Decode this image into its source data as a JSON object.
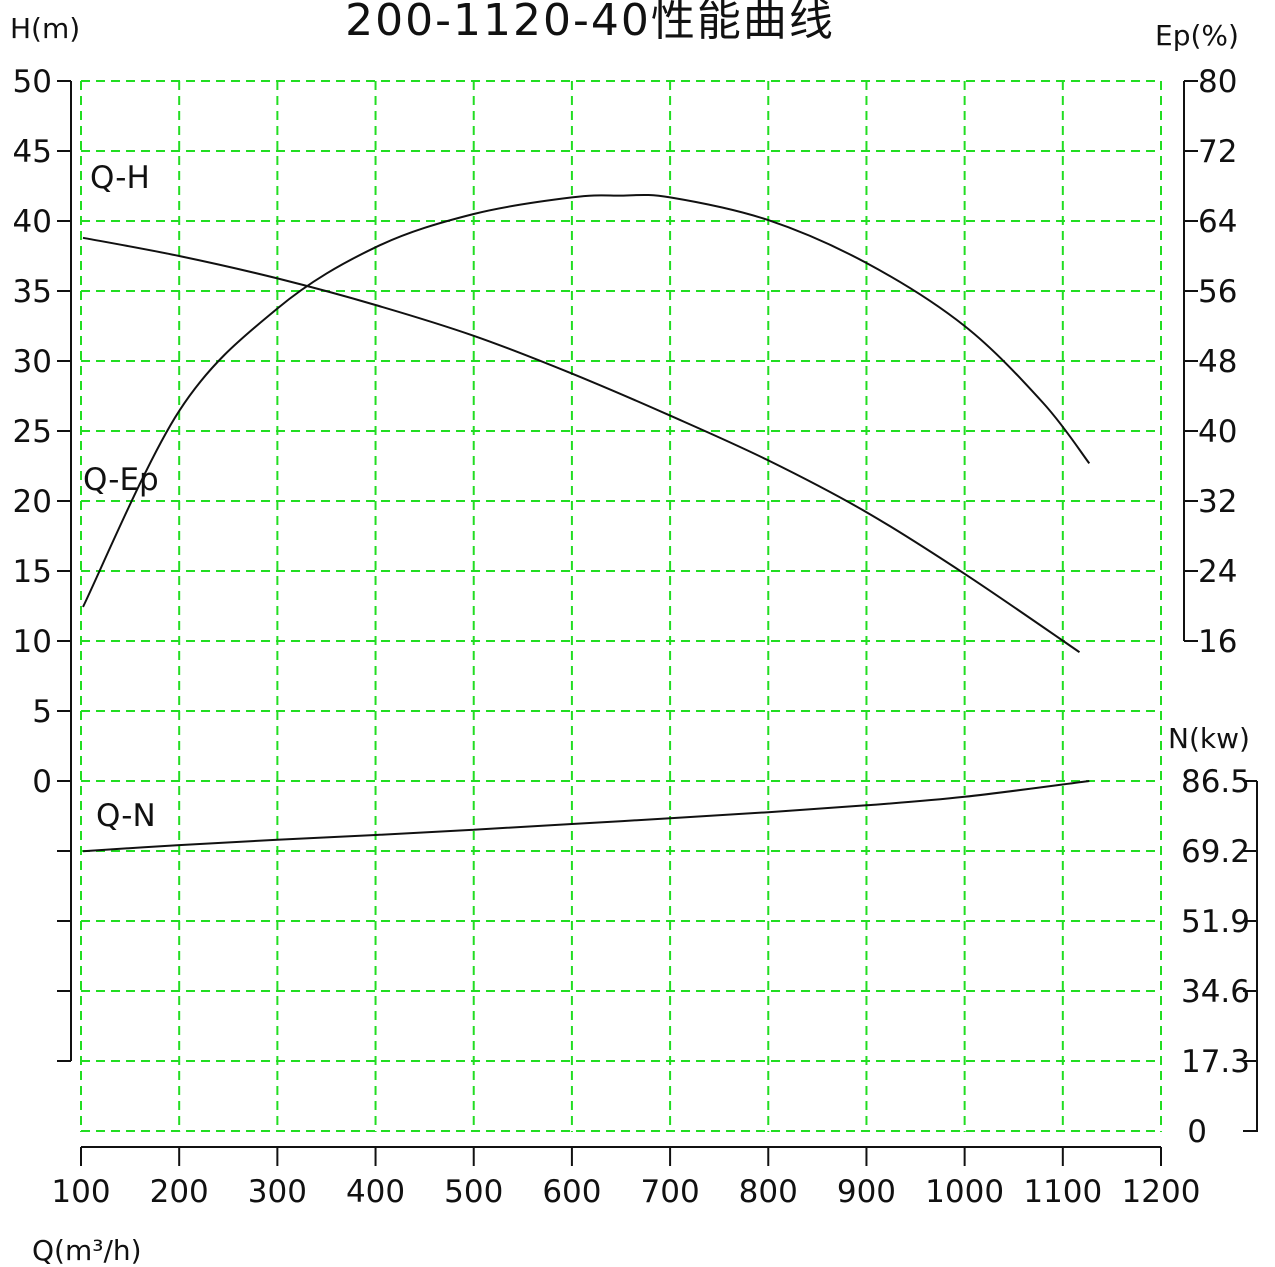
{
  "chart_data": {
    "type": "line",
    "title": "200-1120-40性能曲线",
    "xlabel": "Q(m³/h)",
    "x_ticks": [
      "100",
      "200",
      "300",
      "400",
      "500",
      "600",
      "700",
      "800",
      "900",
      "1000",
      "1100",
      "1200"
    ],
    "xlim": [
      100,
      1200
    ],
    "axes": {
      "head": {
        "label": "H(m)",
        "ylim": [
          0,
          50
        ],
        "ticks": [
          "50",
          "45",
          "40",
          "35",
          "30",
          "25",
          "20",
          "15",
          "10",
          "5",
          "0"
        ]
      },
      "efficiency": {
        "label": "Ep(%)",
        "ylim": [
          16,
          80
        ],
        "ticks": [
          "80",
          "72",
          "64",
          "56",
          "48",
          "40",
          "32",
          "24",
          "16"
        ]
      },
      "power": {
        "label": "N(kw)",
        "ylim": [
          0,
          86.5
        ],
        "ticks": [
          "86.5",
          "69.2",
          "51.9",
          "34.6",
          "17.3",
          "0"
        ]
      }
    },
    "grid": true,
    "series": [
      {
        "name": "Q-H",
        "axis": "head",
        "x": [
          102,
          200,
          300,
          400,
          500,
          600,
          700,
          800,
          900,
          1000,
          1117
        ],
        "y": [
          38.8,
          37.5,
          35.9,
          34.0,
          31.8,
          29.1,
          26.1,
          22.9,
          19.2,
          14.8,
          9.2
        ]
      },
      {
        "name": "Q-Ep",
        "axis": "efficiency",
        "x": [
          102,
          200,
          300,
          400,
          500,
          600,
          650,
          700,
          800,
          900,
          1000,
          1080,
          1127
        ],
        "y": [
          19.9,
          42.3,
          54.0,
          61.0,
          64.8,
          66.7,
          66.9,
          66.7,
          64.1,
          59.2,
          52.0,
          43.2,
          36.3
        ]
      },
      {
        "name": "Q-N",
        "axis": "power",
        "x": [
          102,
          200,
          300,
          400,
          500,
          600,
          700,
          800,
          900,
          1000,
          1127
        ],
        "y": [
          69.2,
          70.7,
          72.0,
          73.2,
          74.5,
          75.9,
          77.3,
          78.8,
          80.5,
          82.6,
          86.5
        ]
      }
    ]
  }
}
